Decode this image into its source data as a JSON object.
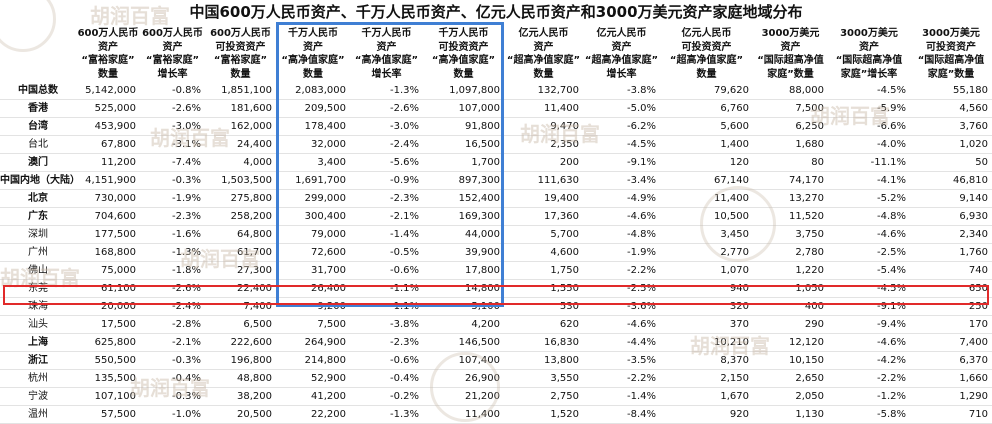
{
  "title": "中国600万人民币资产、千万人民币资产、亿元人民币资产和3000万美元资产家庭地域分布",
  "watermark_text": "胡润百富",
  "headers": [
    "",
    "600万人民币\n资产\n“富裕家庭”\n数量",
    "600万人民币\n资产\n“富裕家庭”\n增长率",
    "600万人民币\n可投资资产\n“富裕家庭”\n数量",
    "千万人民币\n资产\n“高净值家庭”\n数量",
    "千万人民币\n资产\n“高净值家庭”\n增长率",
    "千万人民币\n可投资资产\n“高净值家庭”\n数量",
    "亿元人民币\n资产\n“超高净值家庭”\n数量",
    "亿元人民币\n资产\n“超高净值家庭”\n增长率",
    "亿元人民币\n可投资资产\n“超高净值家庭”\n数量",
    "3000万美元\n资产\n“国际超高净值\n家庭”数量",
    "3000万美元\n资产\n“国际超高净值\n家庭”增长率",
    "3000万美元\n可投资资产\n“国际超高净值\n家庭”数量"
  ],
  "rows": [
    {
      "name": "中国总数",
      "bold": true,
      "values": [
        "5,142,000",
        "-0.8%",
        "1,851,100",
        "2,083,000",
        "-1.3%",
        "1,097,800",
        "132,700",
        "-3.8%",
        "79,620",
        "88,000",
        "-4.5%",
        "55,180"
      ]
    },
    {
      "name": "香港",
      "bold": true,
      "values": [
        "525,000",
        "-2.6%",
        "181,600",
        "209,500",
        "-2.6%",
        "107,000",
        "11,400",
        "-5.0%",
        "6,760",
        "7,500",
        "-5.9%",
        "4,560"
      ]
    },
    {
      "name": "台湾",
      "bold": true,
      "values": [
        "453,900",
        "-3.0%",
        "162,000",
        "178,400",
        "-3.0%",
        "91,800",
        "9,470",
        "-6.2%",
        "5,600",
        "6,250",
        "-6.6%",
        "3,760"
      ]
    },
    {
      "name": "台北",
      "bold": false,
      "values": [
        "67,800",
        "-3.1%",
        "24,400",
        "32,000",
        "-2.4%",
        "16,500",
        "2,350",
        "-4.5%",
        "1,400",
        "1,680",
        "-4.0%",
        "1,020"
      ]
    },
    {
      "name": "澳门",
      "bold": true,
      "values": [
        "11,200",
        "-7.4%",
        "4,000",
        "3,400",
        "-5.6%",
        "1,700",
        "200",
        "-9.1%",
        "120",
        "80",
        "-11.1%",
        "50"
      ]
    },
    {
      "name": "中国内地（大陆）",
      "bold": true,
      "values": [
        "4,151,900",
        "-0.3%",
        "1,503,500",
        "1,691,700",
        "-0.9%",
        "897,300",
        "111,630",
        "-3.4%",
        "67,140",
        "74,170",
        "-4.1%",
        "46,810"
      ]
    },
    {
      "name": "北京",
      "bold": true,
      "values": [
        "730,000",
        "-1.9%",
        "275,800",
        "299,000",
        "-2.3%",
        "152,400",
        "19,400",
        "-4.9%",
        "11,400",
        "13,270",
        "-5.2%",
        "9,140"
      ]
    },
    {
      "name": "广东",
      "bold": true,
      "values": [
        "704,600",
        "-2.3%",
        "258,200",
        "300,400",
        "-2.1%",
        "169,300",
        "17,360",
        "-4.6%",
        "10,500",
        "11,520",
        "-4.8%",
        "6,930"
      ]
    },
    {
      "name": "深圳",
      "bold": false,
      "values": [
        "177,500",
        "-1.6%",
        "64,800",
        "79,000",
        "-1.4%",
        "44,000",
        "5,700",
        "-4.8%",
        "3,450",
        "3,750",
        "-4.6%",
        "2,340"
      ]
    },
    {
      "name": "广州",
      "bold": false,
      "values": [
        "168,800",
        "-1.3%",
        "61,700",
        "72,600",
        "-0.5%",
        "39,900",
        "4,600",
        "-1.9%",
        "2,770",
        "2,780",
        "-2.5%",
        "1,760"
      ]
    },
    {
      "name": "佛山",
      "bold": false,
      "values": [
        "75,000",
        "-1.8%",
        "27,300",
        "31,700",
        "-0.6%",
        "17,800",
        "1,750",
        "-2.2%",
        "1,070",
        "1,220",
        "-5.4%",
        "740"
      ]
    },
    {
      "name": "东莞",
      "bold": false,
      "values": [
        "61,100",
        "-2.6%",
        "22,400",
        "26,400",
        "-1.1%",
        "14,800",
        "1,550",
        "-2.5%",
        "940",
        "1,050",
        "-4.5%",
        "650"
      ]
    },
    {
      "name": "珠海",
      "bold": false,
      "values": [
        "20,000",
        "-2.4%",
        "7,400",
        "9,200",
        "-1.1%",
        "5,100",
        "530",
        "-3.6%",
        "320",
        "400",
        "-9.1%",
        "250"
      ]
    },
    {
      "name": "汕头",
      "bold": false,
      "values": [
        "17,500",
        "-2.8%",
        "6,500",
        "7,500",
        "-3.8%",
        "4,200",
        "620",
        "-4.6%",
        "370",
        "290",
        "-9.4%",
        "170"
      ]
    },
    {
      "name": "上海",
      "bold": true,
      "values": [
        "625,800",
        "-2.1%",
        "222,600",
        "264,900",
        "-2.3%",
        "146,500",
        "16,830",
        "-4.4%",
        "10,210",
        "12,120",
        "-4.6%",
        "7,400"
      ]
    },
    {
      "name": "浙江",
      "bold": true,
      "values": [
        "550,500",
        "-0.3%",
        "196,800",
        "214,800",
        "-0.6%",
        "107,400",
        "13,800",
        "-3.5%",
        "8,370",
        "10,150",
        "-4.2%",
        "6,370"
      ]
    },
    {
      "name": "杭州",
      "bold": false,
      "values": [
        "135,500",
        "-0.4%",
        "48,800",
        "52,900",
        "-0.4%",
        "26,900",
        "3,550",
        "-2.2%",
        "2,150",
        "2,650",
        "-2.2%",
        "1,660"
      ]
    },
    {
      "name": "宁波",
      "bold": false,
      "values": [
        "107,100",
        "-0.3%",
        "38,200",
        "41,200",
        "-0.2%",
        "21,200",
        "2,750",
        "-1.4%",
        "1,670",
        "2,050",
        "-1.2%",
        "1,290"
      ]
    },
    {
      "name": "温州",
      "bold": false,
      "values": [
        "57,500",
        "-1.0%",
        "20,500",
        "22,200",
        "-1.3%",
        "11,400",
        "1,520",
        "-8.4%",
        "920",
        "1,130",
        "-5.8%",
        "710"
      ]
    }
  ]
}
